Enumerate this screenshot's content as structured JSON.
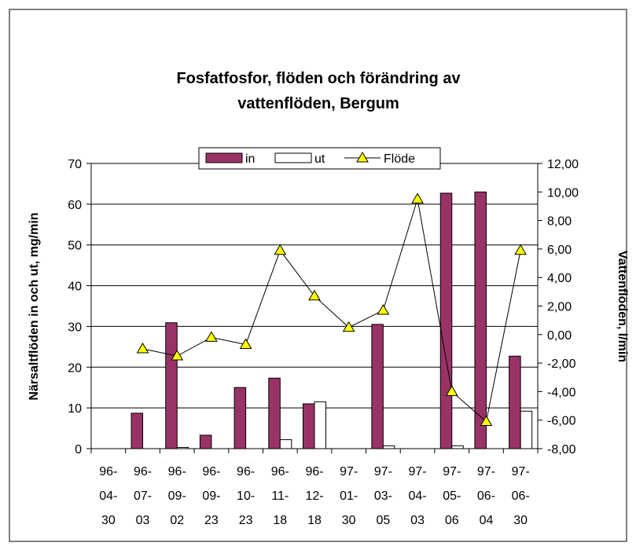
{
  "chart_data": {
    "type": "bar",
    "title": [
      "Fosfatfosfor, flöden och förändring av",
      "vattenflöden, Bergum"
    ],
    "ylabel": "Närsaltflöden in och ut, mg/min",
    "y2label": "Vattenflöden, l/min",
    "categories": [
      "96-04-30",
      "96-07-03",
      "96-09-02",
      "96-09-23",
      "96-10-23",
      "96-11-18",
      "96-12-18",
      "97-01-30",
      "97-03-05",
      "97-04-03",
      "97-05-06",
      "97-06-04",
      "97-06-30"
    ],
    "series": [
      {
        "name": "in",
        "color": "#993366",
        "values": [
          0,
          8.7,
          30.9,
          3.3,
          15,
          17.3,
          11,
          0,
          30.5,
          0,
          62.7,
          63,
          22.7
        ]
      },
      {
        "name": "ut",
        "color": "#ffffff",
        "values": [
          0,
          0,
          0.3,
          0,
          0,
          2.2,
          11.5,
          0,
          0.7,
          0,
          0.7,
          0,
          9.2
        ]
      },
      {
        "name": "Flöde",
        "type": "line",
        "axis": "y2",
        "color": "#ffff00",
        "values": [
          null,
          -1.0,
          -1.5,
          -0.2,
          -0.7,
          5.9,
          2.7,
          0.5,
          1.7,
          9.5,
          -4.0,
          -6.1,
          5.9
        ]
      }
    ],
    "ylim": [
      0,
      70
    ],
    "yticks": [
      0,
      10,
      20,
      30,
      40,
      50,
      60,
      70
    ],
    "y2lim": [
      -8,
      12
    ],
    "y2ticks": [
      {
        "value": -8,
        "label": "-8,00"
      },
      {
        "value": -6,
        "label": "-6,00"
      },
      {
        "value": -4,
        "label": "-4,00"
      },
      {
        "value": -2,
        "label": "-2,00"
      },
      {
        "value": 0,
        "label": "0,00"
      },
      {
        "value": 2,
        "label": "2,00"
      },
      {
        "value": 4,
        "label": "4,00"
      },
      {
        "value": 6,
        "label": "6,00"
      },
      {
        "value": 8,
        "label": "8,00"
      },
      {
        "value": 10,
        "label": "10,00"
      },
      {
        "value": 12,
        "label": "12,00"
      }
    ],
    "grid": true,
    "legend": "top"
  }
}
